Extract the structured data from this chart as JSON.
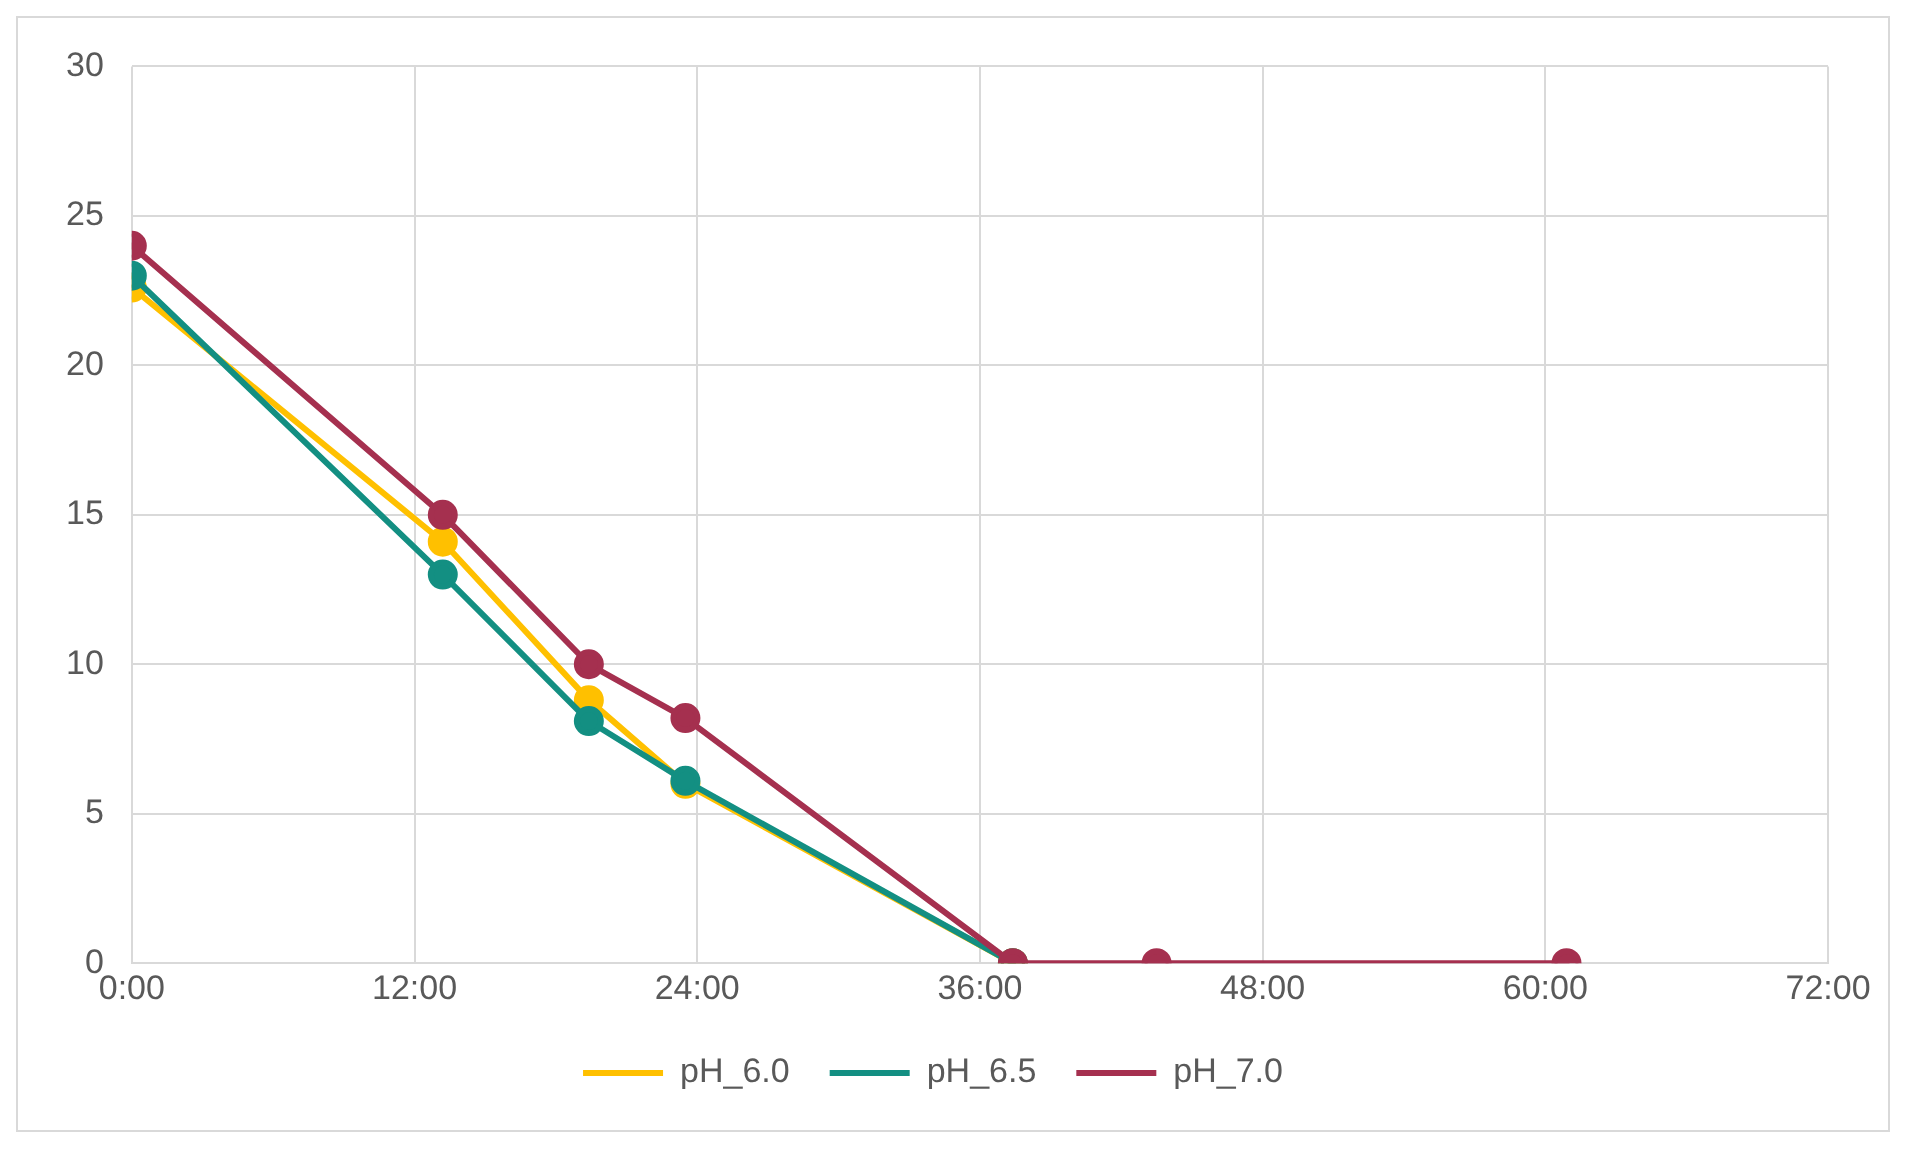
{
  "chart_data": {
    "type": "line",
    "x": [
      0,
      13.2,
      19.4,
      23.5,
      37.4,
      43.5,
      60.9
    ],
    "series": [
      {
        "name": "pH_6.0",
        "color": "#ffc000",
        "values": [
          22.6,
          14.1,
          8.8,
          6.0,
          0,
          null,
          null
        ]
      },
      {
        "name": "pH_6.5",
        "color": "#138f82",
        "values": [
          23.0,
          13.0,
          8.1,
          6.1,
          0,
          null,
          null
        ]
      },
      {
        "name": "pH_7.0",
        "color": "#a5304f",
        "values": [
          24.0,
          15.0,
          10.0,
          8.2,
          0,
          0,
          0
        ]
      }
    ],
    "xlim": [
      0,
      72
    ],
    "xticks": [
      {
        "value": 0,
        "label": "0:00"
      },
      {
        "value": 12,
        "label": "12:00"
      },
      {
        "value": 24,
        "label": "24:00"
      },
      {
        "value": 36,
        "label": "36:00"
      },
      {
        "value": 48,
        "label": "48:00"
      },
      {
        "value": 60,
        "label": "60:00"
      },
      {
        "value": 72,
        "label": "72:00"
      }
    ],
    "ylim": [
      0,
      30
    ],
    "yticks": [
      0,
      5,
      10,
      15,
      20,
      25,
      30
    ],
    "grid": true,
    "legend": "bottom",
    "marker": "circle",
    "line_style": "solid"
  }
}
